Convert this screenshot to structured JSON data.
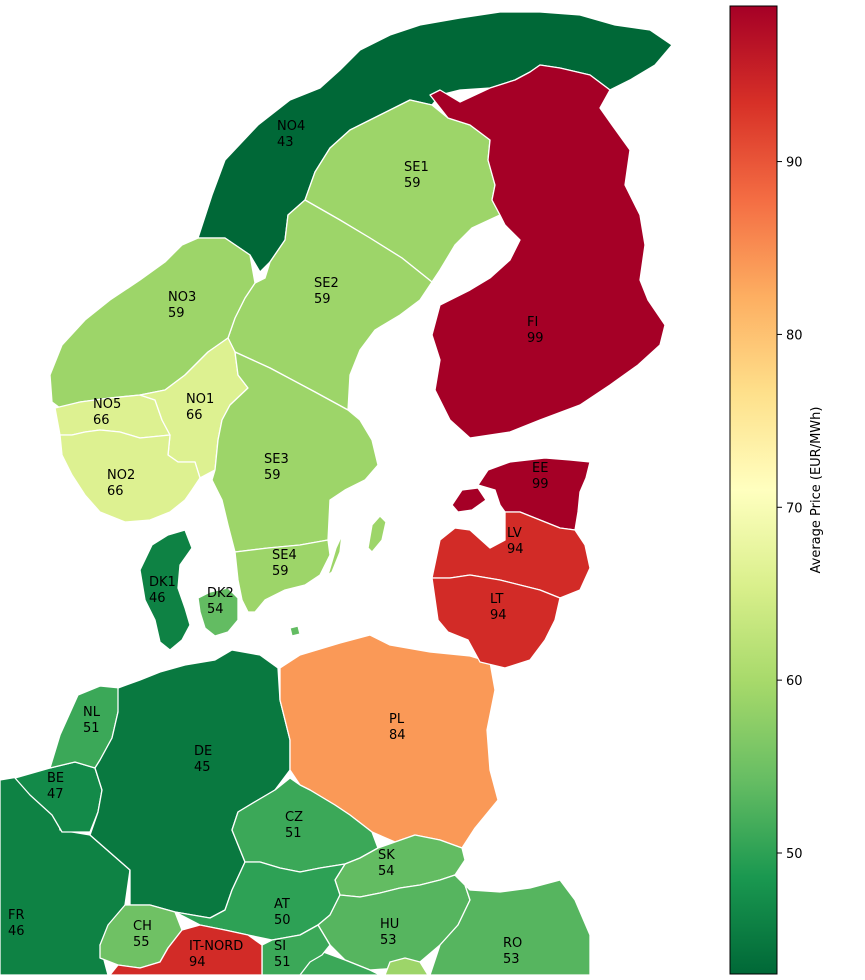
{
  "chart_data": {
    "type": "choropleth",
    "value_label": "Average Price (EUR/MWh)",
    "colormap": "RdYlGn_r",
    "color_range": [
      43,
      99
    ],
    "colorbar_ticks": [
      50,
      60,
      70,
      80,
      90
    ],
    "colorbar_tick_labels": [
      "50",
      "60",
      "70",
      "80",
      "90"
    ],
    "zones": [
      {
        "code": "NO4",
        "label": "NO4",
        "value": 43
      },
      {
        "code": "SE1",
        "label": "SE1",
        "value": 59
      },
      {
        "code": "FI",
        "label": "FI",
        "value": 99
      },
      {
        "code": "NO3",
        "label": "NO3",
        "value": 59
      },
      {
        "code": "SE2",
        "label": "SE2",
        "value": 59
      },
      {
        "code": "NO5",
        "label": "NO5",
        "value": 66
      },
      {
        "code": "NO1",
        "label": "NO1",
        "value": 66
      },
      {
        "code": "NO2",
        "label": "NO2",
        "value": 66
      },
      {
        "code": "SE3",
        "label": "SE3",
        "value": 59
      },
      {
        "code": "EE",
        "label": "EE",
        "value": 99
      },
      {
        "code": "LV",
        "label": "LV",
        "value": 94
      },
      {
        "code": "LT",
        "label": "LT",
        "value": 94
      },
      {
        "code": "SE4",
        "label": "SE4",
        "value": 59
      },
      {
        "code": "DK1",
        "label": "DK1",
        "value": 46
      },
      {
        "code": "DK2",
        "label": "DK2",
        "value": 54
      },
      {
        "code": "PL",
        "label": "PL",
        "value": 84
      },
      {
        "code": "NL",
        "label": "NL",
        "value": 51
      },
      {
        "code": "DE",
        "label": "DE",
        "value": 45
      },
      {
        "code": "BE",
        "label": "BE",
        "value": 47
      },
      {
        "code": "CZ",
        "label": "CZ",
        "value": 51
      },
      {
        "code": "SK",
        "label": "SK",
        "value": 54
      },
      {
        "code": "FR",
        "label": "FR",
        "value": 46
      },
      {
        "code": "AT",
        "label": "AT",
        "value": 50
      },
      {
        "code": "HU",
        "label": "HU",
        "value": 53
      },
      {
        "code": "CH",
        "label": "CH",
        "value": 55
      },
      {
        "code": "IT-NORD",
        "label": "IT-NORD",
        "value": 94
      },
      {
        "code": "SI",
        "label": "SI",
        "value": 51
      },
      {
        "code": "RO",
        "label": "RO",
        "value": 53
      }
    ]
  }
}
